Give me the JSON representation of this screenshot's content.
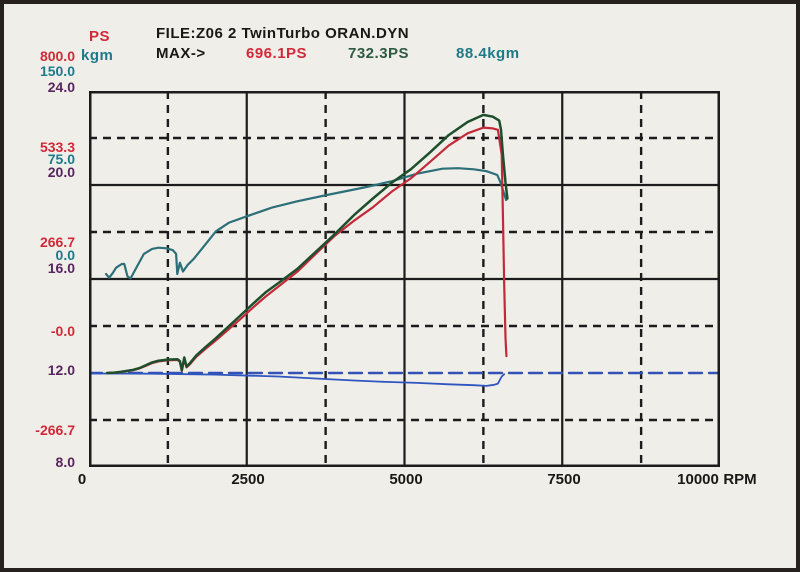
{
  "header": {
    "ps_unit": "PS",
    "kgm_unit": "kgm",
    "file_line": "FILE:Z06 2 TwinTurbo ORAN.DYN",
    "max_label": "MAX->",
    "max_ps_red": "696.1PS",
    "max_ps_green": "732.3PS",
    "max_kgm_teal": "88.4kgm"
  },
  "y_axis_labels": {
    "ps": [
      "800.0",
      "533.3",
      "266.7",
      "-0.0",
      "-266.7"
    ],
    "kgm": [
      "150.0",
      "75.0",
      "0.0"
    ],
    "af": [
      "24.0",
      "20.0",
      "16.0",
      "12.0",
      "8.0"
    ]
  },
  "x_axis_labels": [
    "0",
    "2500",
    "5000",
    "7500",
    "10000"
  ],
  "x_axis_unit": "RPM",
  "colors": {
    "red_curve": "#c22a3a",
    "green_curve": "#1d4f2d",
    "teal_curve": "#2d6f78",
    "blue_line": "#3352b5",
    "grid": "#1c1c1c",
    "paper": "#f0eee9"
  },
  "chart_data": {
    "type": "line",
    "title": "FILE:Z06 2 TwinTurbo ORAN.DYN",
    "xlabel": "RPM",
    "x_axis": {
      "min": 0,
      "max": 10000,
      "major_tick_step": 2500,
      "minor_tick_step": 1250
    },
    "y_axes": {
      "ps": {
        "label": "PS",
        "min": -266.7,
        "max": 800,
        "tick_labels": [
          800.0,
          533.3,
          266.7,
          -0.0,
          -266.7
        ],
        "color": "#d2293a"
      },
      "kgm": {
        "label": "kgm",
        "min": -150,
        "max": 150,
        "tick_labels": [
          150.0,
          75.0,
          0.0
        ],
        "color": "#1e7a88"
      },
      "af": {
        "label": "",
        "min": 8,
        "max": 24,
        "tick_labels": [
          24.0,
          20.0,
          16.0,
          12.0,
          8.0
        ],
        "color": "#56275e"
      }
    },
    "grid": "solid majors with dashed half-step lines",
    "series": [
      {
        "name": "af-reference-line",
        "axis": "af",
        "color": "#3352b5",
        "style": "dashed",
        "width": 2.4,
        "points": [
          [
            0,
            12
          ],
          [
            10000,
            12
          ]
        ]
      },
      {
        "name": "af-measured-line",
        "axis": "af",
        "color": "#2f55c0",
        "style": "solid",
        "width": 1.8,
        "points": [
          [
            30,
            11.98
          ],
          [
            1000,
            11.97
          ],
          [
            2000,
            11.93
          ],
          [
            3000,
            11.85
          ],
          [
            3700,
            11.75
          ],
          [
            4200,
            11.68
          ],
          [
            4700,
            11.62
          ],
          [
            5200,
            11.58
          ],
          [
            5700,
            11.52
          ],
          [
            6100,
            11.48
          ],
          [
            6300,
            11.45
          ],
          [
            6420,
            11.5
          ],
          [
            6480,
            11.55
          ],
          [
            6540,
            11.85
          ],
          [
            6580,
            11.95
          ]
        ]
      },
      {
        "name": "torque-curve-teal",
        "axis": "kgm",
        "color": "#2d6f78",
        "style": "solid",
        "width": 2.2,
        "max": 88.4,
        "points": [
          [
            270,
            4
          ],
          [
            320,
            1
          ],
          [
            380,
            5
          ],
          [
            430,
            9
          ],
          [
            520,
            12
          ],
          [
            560,
            12
          ],
          [
            610,
            2
          ],
          [
            660,
            0.5
          ],
          [
            760,
            10
          ],
          [
            870,
            20
          ],
          [
            1000,
            24
          ],
          [
            1100,
            25
          ],
          [
            1230,
            24.5
          ],
          [
            1330,
            23
          ],
          [
            1380,
            20
          ],
          [
            1400,
            4
          ],
          [
            1440,
            13
          ],
          [
            1490,
            6
          ],
          [
            1560,
            11
          ],
          [
            1660,
            16
          ],
          [
            1820,
            26
          ],
          [
            2010,
            38
          ],
          [
            2220,
            45
          ],
          [
            2500,
            50
          ],
          [
            2900,
            57
          ],
          [
            3300,
            62
          ],
          [
            3770,
            67
          ],
          [
            4360,
            73
          ],
          [
            4800,
            78
          ],
          [
            5200,
            84
          ],
          [
            5600,
            88
          ],
          [
            5850,
            88.4
          ],
          [
            6100,
            87.5
          ],
          [
            6300,
            86
          ],
          [
            6470,
            83
          ],
          [
            6530,
            76
          ],
          [
            6580,
            68
          ],
          [
            6610,
            63
          ]
        ]
      },
      {
        "name": "power-curve-red",
        "axis": "ps",
        "color": "#c22a3a",
        "style": "solid",
        "width": 2.2,
        "max": 696.1,
        "points": [
          [
            285,
            0
          ],
          [
            400,
            1
          ],
          [
            500,
            2
          ],
          [
            600,
            5
          ],
          [
            700,
            8
          ],
          [
            800,
            13
          ],
          [
            900,
            20
          ],
          [
            1000,
            28
          ],
          [
            1100,
            33
          ],
          [
            1250,
            36
          ],
          [
            1400,
            37
          ],
          [
            1440,
            32
          ],
          [
            1470,
            6
          ],
          [
            1510,
            41
          ],
          [
            1545,
            16
          ],
          [
            1600,
            25
          ],
          [
            1700,
            46
          ],
          [
            1850,
            69
          ],
          [
            2000,
            91
          ],
          [
            2200,
            122
          ],
          [
            2400,
            153
          ],
          [
            2600,
            186
          ],
          [
            2800,
            217
          ],
          [
            3000,
            245
          ],
          [
            3300,
            287
          ],
          [
            3600,
            339
          ],
          [
            3900,
            390
          ],
          [
            4200,
            432
          ],
          [
            4500,
            470
          ],
          [
            4800,
            515
          ],
          [
            5100,
            552
          ],
          [
            5400,
            598
          ],
          [
            5700,
            645
          ],
          [
            6000,
            680
          ],
          [
            6250,
            696.1
          ],
          [
            6400,
            694
          ],
          [
            6480,
            690
          ],
          [
            6540,
            620
          ],
          [
            6560,
            450
          ],
          [
            6580,
            250
          ],
          [
            6600,
            100
          ],
          [
            6615,
            48
          ]
        ]
      },
      {
        "name": "power-curve-green",
        "axis": "ps",
        "color": "#1d4f2d",
        "style": "solid",
        "width": 2.5,
        "max": 732.3,
        "points": [
          [
            285,
            0
          ],
          [
            400,
            1
          ],
          [
            500,
            3
          ],
          [
            600,
            6
          ],
          [
            700,
            9
          ],
          [
            800,
            14
          ],
          [
            900,
            22
          ],
          [
            1000,
            30
          ],
          [
            1100,
            35
          ],
          [
            1250,
            38
          ],
          [
            1400,
            39
          ],
          [
            1440,
            34
          ],
          [
            1470,
            8
          ],
          [
            1510,
            44
          ],
          [
            1545,
            18
          ],
          [
            1600,
            28
          ],
          [
            1700,
            50
          ],
          [
            1850,
            74
          ],
          [
            2000,
            97
          ],
          [
            2200,
            130
          ],
          [
            2400,
            163
          ],
          [
            2600,
            197
          ],
          [
            2800,
            229
          ],
          [
            3000,
            255
          ],
          [
            3300,
            295
          ],
          [
            3600,
            345
          ],
          [
            3900,
            395
          ],
          [
            4200,
            448
          ],
          [
            4500,
            495
          ],
          [
            4800,
            540
          ],
          [
            5100,
            578
          ],
          [
            5400,
            625
          ],
          [
            5700,
            675
          ],
          [
            6000,
            712
          ],
          [
            6250,
            732.3
          ],
          [
            6400,
            727
          ],
          [
            6500,
            716
          ],
          [
            6530,
            690
          ],
          [
            6560,
            620
          ],
          [
            6600,
            540
          ],
          [
            6630,
            495
          ]
        ]
      }
    ]
  }
}
